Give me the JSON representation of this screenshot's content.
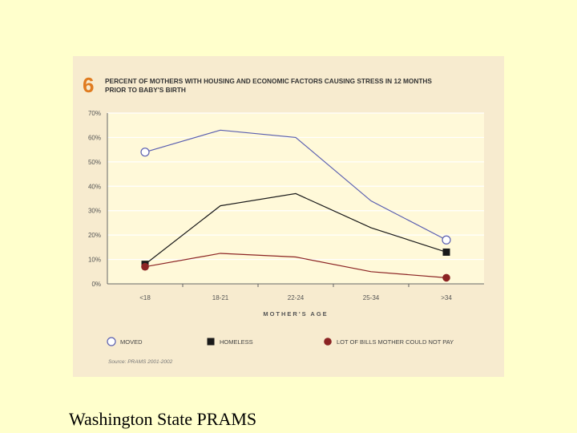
{
  "caption": "Washington State PRAMS",
  "chart_data": {
    "type": "line",
    "figure_number": "6",
    "title_line1": "PERCENT OF MOTHERS WITH HOUSING AND ECONOMIC FACTORS CAUSING STRESS IN 12 MONTHS",
    "title_line2": "PRIOR TO BABY'S BIRTH",
    "xlabel": "MOTHER'S AGE",
    "ylabel": "",
    "categories": [
      "<18",
      "18-21",
      "22-24",
      "25-34",
      ">34"
    ],
    "ylim": [
      0,
      70
    ],
    "yticks": [
      0,
      10,
      20,
      30,
      40,
      50,
      60,
      70
    ],
    "ytick_labels": [
      "0%",
      "10%",
      "20%",
      "30%",
      "40%",
      "50%",
      "60%",
      "70%"
    ],
    "grid": true,
    "series": [
      {
        "name": "MOVED",
        "values": [
          54,
          63,
          60,
          34,
          18
        ],
        "color": "#5a5fb0",
        "marker": "open-circle"
      },
      {
        "name": "HOMELESS",
        "values": [
          8,
          32,
          37,
          23,
          13
        ],
        "color": "#1a1a1a",
        "marker": "square"
      },
      {
        "name": "LOT OF BILLS MOTHER COULD NOT PAY",
        "values": [
          7,
          12.5,
          11,
          5,
          2.5
        ],
        "color": "#8b2323",
        "marker": "filled-circle"
      }
    ],
    "source": "Source: PRAMS 2001-2002",
    "colors": {
      "figure_bg": "#f7ebcf",
      "plot_bg": "#fff9d9",
      "accent": "#e07b20",
      "grid": "#ffffff"
    }
  }
}
